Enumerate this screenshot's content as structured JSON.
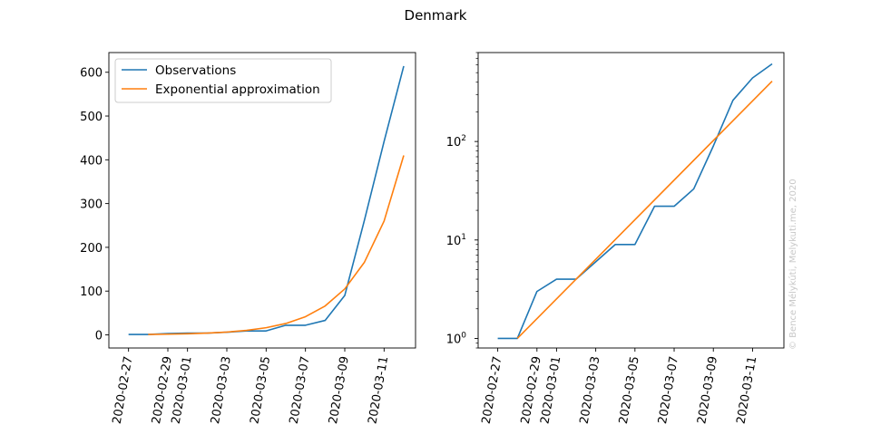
{
  "title": "Denmark",
  "watermark": "© Bence Mélykúti, Melykuti.me, 2020",
  "colors": {
    "observations": "#1f77b4",
    "approximation": "#ff7f0e",
    "axis": "#000000",
    "watermark": "#c8c8c8"
  },
  "chart_data": [
    {
      "type": "line",
      "yscale": "linear",
      "ylim": [
        -30,
        645
      ],
      "xlim": [
        "2020-02-26",
        "2020-03-12"
      ],
      "yticks": [
        0,
        100,
        200,
        300,
        400,
        500,
        600
      ],
      "ytick_labels": [
        "0",
        "100",
        "200",
        "300",
        "400",
        "500",
        "600"
      ],
      "xticks": [
        "2020-02-27",
        "2020-02-29",
        "2020-03-01",
        "2020-03-03",
        "2020-03-05",
        "2020-03-07",
        "2020-03-09",
        "2020-03-11"
      ],
      "grid": false,
      "legend": {
        "placement": "top-left",
        "entries": [
          "Observations",
          "Exponential approximation"
        ]
      },
      "series": [
        {
          "name": "Observations",
          "x": [
            "2020-02-27",
            "2020-02-28",
            "2020-02-29",
            "2020-03-01",
            "2020-03-02",
            "2020-03-03",
            "2020-03-04",
            "2020-03-05",
            "2020-03-06",
            "2020-03-07",
            "2020-03-08",
            "2020-03-09",
            "2020-03-10",
            "2020-03-11",
            "2020-03-12"
          ],
          "y": [
            1,
            1,
            3,
            4,
            4,
            6,
            9,
            9,
            22,
            22,
            33,
            90,
            262,
            442,
            614
          ]
        },
        {
          "name": "Exponential approximation",
          "x": [
            "2020-02-28",
            "2020-02-29",
            "2020-03-01",
            "2020-03-02",
            "2020-03-03",
            "2020-03-04",
            "2020-03-05",
            "2020-03-06",
            "2020-03-07",
            "2020-03-08",
            "2020-03-09",
            "2020-03-10",
            "2020-03-11",
            "2020-03-12"
          ],
          "y": [
            1,
            1.6,
            2.5,
            4,
            6.4,
            10.2,
            16.3,
            26,
            41.5,
            66,
            105,
            166,
            260,
            410
          ]
        }
      ]
    },
    {
      "type": "line",
      "yscale": "log",
      "ylim": [
        0.8,
        800
      ],
      "xlim": [
        "2020-02-26",
        "2020-03-12"
      ],
      "yticks": [
        1,
        10,
        100
      ],
      "ytick_labels": [
        {
          "base": "10",
          "exp": "0"
        },
        {
          "base": "10",
          "exp": "1"
        },
        {
          "base": "10",
          "exp": "2"
        }
      ],
      "xticks": [
        "2020-02-27",
        "2020-02-29",
        "2020-03-01",
        "2020-03-03",
        "2020-03-05",
        "2020-03-07",
        "2020-03-09",
        "2020-03-11"
      ],
      "grid": false,
      "series": [
        {
          "name": "Observations",
          "x": [
            "2020-02-27",
            "2020-02-28",
            "2020-02-29",
            "2020-03-01",
            "2020-03-02",
            "2020-03-03",
            "2020-03-04",
            "2020-03-05",
            "2020-03-06",
            "2020-03-07",
            "2020-03-08",
            "2020-03-09",
            "2020-03-10",
            "2020-03-11",
            "2020-03-12"
          ],
          "y": [
            1,
            1,
            3,
            4,
            4,
            6,
            9,
            9,
            22,
            22,
            33,
            90,
            262,
            442,
            614
          ]
        },
        {
          "name": "Exponential approximation",
          "x": [
            "2020-02-28",
            "2020-03-12"
          ],
          "y": [
            1,
            410
          ]
        }
      ]
    }
  ]
}
